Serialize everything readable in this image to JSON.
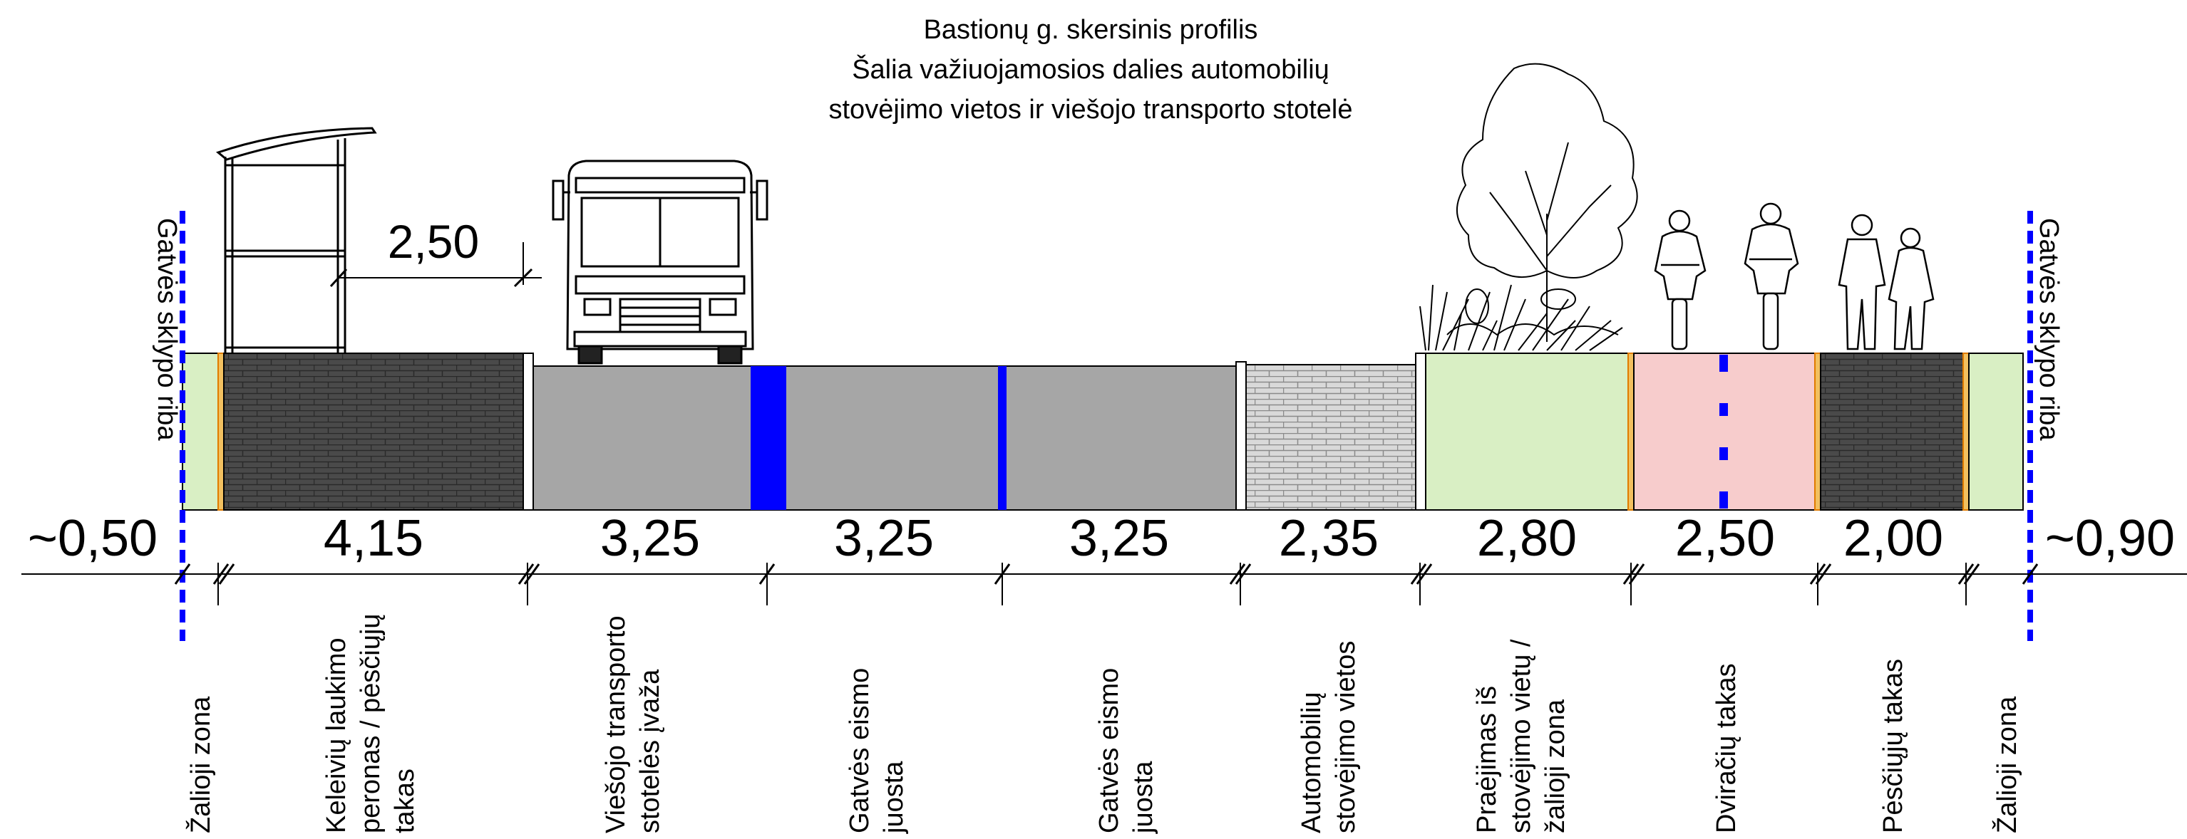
{
  "title": {
    "line1": "Bastionų g. skersinis profilis",
    "line2": "Šalia važiuojamosios dalies automobilių",
    "line3": "stovėjimo vietos ir viešojo transporto stotelė"
  },
  "boundary_label": "Gatvės sklypo riba",
  "shelter_dimension": "2,50",
  "edge_dimensions": {
    "left": "~0,50",
    "right": "~0,90"
  },
  "colors": {
    "green_zone": "#d9efc4",
    "dark_paving": "#4a4a4a",
    "asphalt": "#a6a6a6",
    "light_paving": "#d9d9d9",
    "bike_lane": "#f7cccc",
    "marking_blue": "#0000ff",
    "curb_orange": "#e07b00"
  },
  "segments": [
    {
      "id": "keleiviu",
      "width": "4,15",
      "label_lines": [
        "Keleivių laukimo",
        "peronas / pėsčiųjų",
        "takas"
      ]
    },
    {
      "id": "ivaza",
      "width": "3,25",
      "label_lines": [
        "Viešojo transporto",
        "stotelės įvaža"
      ]
    },
    {
      "id": "juosta1",
      "width": "3,25",
      "label_lines": [
        "Gatvės eismo",
        "juosta"
      ]
    },
    {
      "id": "juosta2",
      "width": "3,25",
      "label_lines": [
        "Gatvės eismo",
        "juosta"
      ]
    },
    {
      "id": "parking",
      "width": "2,35",
      "label_lines": [
        "Automobilių",
        "stovėjimo vietos"
      ]
    },
    {
      "id": "praejimas",
      "width": "2,80",
      "label_lines": [
        "Praėjimas iš",
        "stovėjimo vietų /",
        "žalioji zona"
      ]
    },
    {
      "id": "dviraciu",
      "width": "2,50",
      "label_lines": [
        "Dviračių takas"
      ]
    },
    {
      "id": "pesciuju",
      "width": "2,00",
      "label_lines": [
        "Pėsčiųjų takas"
      ]
    }
  ],
  "edge_labels": {
    "left": "Žalioji zona",
    "right": "Žalioji zona"
  }
}
